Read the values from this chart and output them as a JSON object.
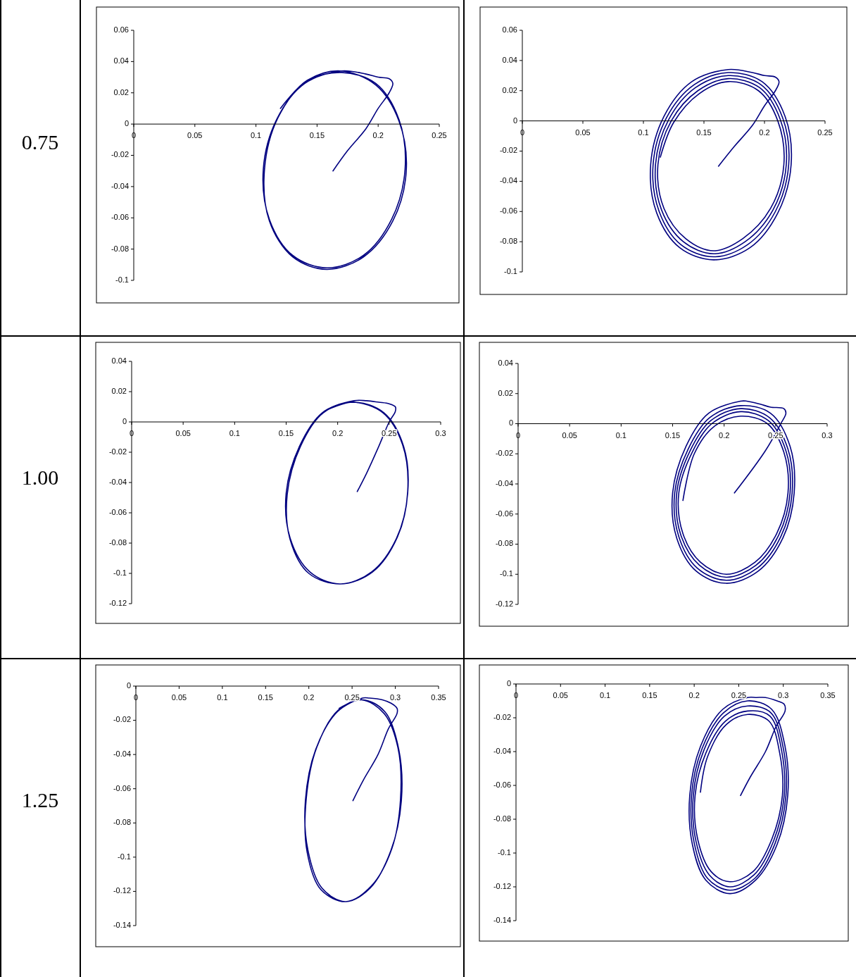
{
  "chart_data": [
    {
      "type": "other",
      "title": "0.75"
    },
    {
      "type": "line",
      "xlim": [
        0,
        0.25
      ],
      "ylim": [
        -0.1,
        0.06
      ],
      "xticks": [
        0,
        0.05,
        0.1,
        0.15,
        0.2,
        0.25
      ],
      "yticks": [
        0.06,
        0.04,
        0.02,
        0,
        -0.02,
        -0.04,
        -0.06,
        -0.08,
        -0.1
      ],
      "series": [
        {
          "color": "#000080",
          "x": [
            0.163,
            0.175,
            0.19,
            0.2,
            0.209,
            0.212,
            0.209,
            0.2,
            0.19,
            0.17,
            0.14,
            0.117,
            0.106,
            0.111,
            0.13,
            0.158,
            0.188,
            0.211,
            0.222,
            0.217,
            0.198,
            0.17,
            0.141,
            0.118,
            0.107,
            0.111,
            0.13,
            0.158,
            0.188,
            0.212,
            0.223,
            0.217,
            0.198,
            0.169,
            0.142,
            0.12
          ],
          "values": [
            -0.03,
            -0.017,
            -0.003,
            0.01,
            0.02,
            0.026,
            0.029,
            0.03,
            0.032,
            0.034,
            0.026,
            0.003,
            -0.029,
            -0.061,
            -0.084,
            -0.092,
            -0.084,
            -0.061,
            -0.029,
            0.003,
            0.026,
            0.033,
            0.027,
            0.004,
            -0.029,
            -0.062,
            -0.085,
            -0.093,
            -0.085,
            -0.062,
            -0.03,
            0.002,
            0.025,
            0.034,
            0.028,
            0.01
          ]
        }
      ]
    },
    {
      "type": "line",
      "xlim": [
        0,
        0.25
      ],
      "ylim": [
        -0.1,
        0.06
      ],
      "xticks": [
        0,
        0.05,
        0.1,
        0.15,
        0.2,
        0.25
      ],
      "yticks": [
        0.06,
        0.04,
        0.02,
        0,
        -0.02,
        -0.04,
        -0.06,
        -0.08,
        -0.1
      ],
      "series": [
        {
          "color": "#000080",
          "x": [
            0.162,
            0.175,
            0.19,
            0.2,
            0.209,
            0.212,
            0.209,
            0.2,
            0.19,
            0.17,
            0.14,
            0.117,
            0.106,
            0.111,
            0.13,
            0.158,
            0.188,
            0.211,
            0.222,
            0.217,
            0.198,
            0.17,
            0.142,
            0.119,
            0.108,
            0.113,
            0.131,
            0.158,
            0.186,
            0.209,
            0.22,
            0.215,
            0.197,
            0.17,
            0.143,
            0.121,
            0.11,
            0.115,
            0.133,
            0.158,
            0.184,
            0.207,
            0.218,
            0.213,
            0.196,
            0.17,
            0.145,
            0.123,
            0.112,
            0.117,
            0.135,
            0.158,
            0.182,
            0.205,
            0.216,
            0.211,
            0.195,
            0.17,
            0.146,
            0.125,
            0.114
          ],
          "values": [
            -0.03,
            -0.017,
            -0.003,
            0.01,
            0.02,
            0.026,
            0.029,
            0.03,
            0.032,
            0.034,
            0.026,
            0.003,
            -0.029,
            -0.061,
            -0.084,
            -0.092,
            -0.084,
            -0.061,
            -0.029,
            0.003,
            0.026,
            0.032,
            0.024,
            0.002,
            -0.029,
            -0.06,
            -0.082,
            -0.09,
            -0.082,
            -0.06,
            -0.029,
            0.002,
            0.024,
            0.03,
            0.022,
            0.001,
            -0.029,
            -0.059,
            -0.08,
            -0.088,
            -0.08,
            -0.059,
            -0.029,
            0.001,
            0.022,
            0.028,
            0.02,
            0,
            -0.029,
            -0.058,
            -0.078,
            -0.086,
            -0.078,
            -0.058,
            -0.029,
            0,
            0.02,
            0.026,
            0.018,
            -0.001,
            -0.024
          ]
        }
      ]
    },
    {
      "type": "other",
      "title": "1.00"
    },
    {
      "type": "line",
      "xlim": [
        0,
        0.3
      ],
      "ylim": [
        -0.12,
        0.04
      ],
      "xticks": [
        0,
        0.05,
        0.1,
        0.15,
        0.2,
        0.25,
        0.3
      ],
      "yticks": [
        0.04,
        0.02,
        0,
        -0.02,
        -0.04,
        -0.06,
        -0.08,
        -0.1,
        -0.12
      ],
      "series": [
        {
          "color": "#000080",
          "x": [
            0.219,
            0.228,
            0.24,
            0.25,
            0.256,
            0.256,
            0.25,
            0.24,
            0.228,
            0.216,
            0.185,
            0.163,
            0.15,
            0.154,
            0.173,
            0.202,
            0.233,
            0.257,
            0.268,
            0.264,
            0.245,
            0.216,
            0.186,
            0.164,
            0.151,
            0.154,
            0.172,
            0.203,
            0.234,
            0.258,
            0.268,
            0.263,
            0.244,
            0.215,
            0.19
          ],
          "values": [
            -0.046,
            -0.034,
            -0.016,
            0,
            0.007,
            0.01,
            0.012,
            0.013,
            0.014,
            0.014,
            0.006,
            -0.016,
            -0.047,
            -0.077,
            -0.099,
            -0.107,
            -0.099,
            -0.077,
            -0.047,
            -0.016,
            0.006,
            0.013,
            0.006,
            -0.016,
            -0.048,
            -0.078,
            -0.1,
            -0.107,
            -0.099,
            -0.076,
            -0.046,
            -0.015,
            0.006,
            0.013,
            0.008
          ]
        }
      ]
    },
    {
      "type": "line",
      "xlim": [
        0,
        0.3
      ],
      "ylim": [
        -0.12,
        0.04
      ],
      "xticks": [
        0,
        0.05,
        0.1,
        0.15,
        0.2,
        0.25,
        0.3
      ],
      "yticks": [
        0.04,
        0.02,
        0,
        -0.02,
        -0.04,
        -0.06,
        -0.08,
        -0.1,
        -0.12
      ],
      "series": [
        {
          "color": "#000080",
          "x": [
            0.21,
            0.24,
            0.255,
            0.26,
            0.258,
            0.245,
            0.235,
            0.222,
            0.216,
            0.185,
            0.163,
            0.15,
            0.154,
            0.173,
            0.202,
            0.233,
            0.257,
            0.268,
            0.264,
            0.245,
            0.216,
            0.186,
            0.165,
            0.152,
            0.156,
            0.174,
            0.202,
            0.232,
            0.255,
            0.266,
            0.262,
            0.244,
            0.216,
            0.187,
            0.167,
            0.154,
            0.158,
            0.176,
            0.202,
            0.231,
            0.253,
            0.264,
            0.26,
            0.243,
            0.216,
            0.188,
            0.169,
            0.156,
            0.16,
            0.177,
            0.202,
            0.23,
            0.251,
            0.262,
            0.258,
            0.242,
            0.216,
            0.19,
            0.171,
            0.16
          ],
          "values": [
            -0.046,
            -0.018,
            0,
            0.007,
            0.01,
            0.011,
            0.013,
            0.015,
            0.015,
            0.007,
            -0.015,
            -0.046,
            -0.076,
            -0.098,
            -0.106,
            -0.098,
            -0.076,
            -0.046,
            -0.015,
            0.007,
            0.012,
            0.004,
            -0.017,
            -0.046,
            -0.075,
            -0.096,
            -0.104,
            -0.096,
            -0.075,
            -0.046,
            -0.017,
            0.004,
            0.01,
            0.002,
            -0.018,
            -0.046,
            -0.074,
            -0.094,
            -0.102,
            -0.094,
            -0.074,
            -0.046,
            -0.018,
            0.002,
            0.008,
            0,
            -0.019,
            -0.046,
            -0.073,
            -0.092,
            -0.1,
            -0.092,
            -0.073,
            -0.046,
            -0.019,
            0,
            0.005,
            -0.002,
            -0.02,
            -0.051
          ]
        }
      ]
    },
    {
      "type": "other",
      "title": "1.25"
    },
    {
      "type": "line",
      "xlim": [
        0,
        0.35
      ],
      "ylim": [
        -0.14,
        0
      ],
      "xticks": [
        0,
        0.05,
        0.1,
        0.15,
        0.2,
        0.25,
        0.3,
        0.35
      ],
      "yticks": [
        0,
        -0.02,
        -0.04,
        -0.06,
        -0.08,
        -0.1,
        -0.12,
        -0.14
      ],
      "series": [
        {
          "color": "#000080",
          "x": [
            0.251,
            0.263,
            0.28,
            0.292,
            0.302,
            0.302,
            0.295,
            0.285,
            0.27,
            0.262,
            0.233,
            0.208,
            0.196,
            0.199,
            0.215,
            0.242,
            0.271,
            0.295,
            0.307,
            0.304,
            0.288,
            0.262,
            0.234,
            0.209,
            0.197,
            0.198,
            0.214,
            0.243,
            0.272,
            0.296,
            0.306,
            0.303,
            0.287,
            0.261,
            0.235
          ],
          "values": [
            -0.067,
            -0.055,
            -0.04,
            -0.025,
            -0.016,
            -0.013,
            -0.01,
            -0.008,
            -0.007,
            -0.007,
            -0.015,
            -0.037,
            -0.067,
            -0.096,
            -0.118,
            -0.126,
            -0.118,
            -0.096,
            -0.067,
            -0.037,
            -0.015,
            -0.008,
            -0.014,
            -0.036,
            -0.066,
            -0.097,
            -0.119,
            -0.126,
            -0.117,
            -0.095,
            -0.066,
            -0.036,
            -0.016,
            -0.008,
            -0.013
          ]
        }
      ]
    },
    {
      "type": "line",
      "xlim": [
        0,
        0.35
      ],
      "ylim": [
        -0.14,
        0
      ],
      "xticks": [
        0,
        0.05,
        0.1,
        0.15,
        0.2,
        0.25,
        0.3,
        0.35
      ],
      "yticks": [
        0,
        -0.02,
        -0.04,
        -0.06,
        -0.08,
        -0.1,
        -0.12,
        -0.14
      ],
      "series": [
        {
          "color": "#000080",
          "x": [
            0.252,
            0.263,
            0.28,
            0.292,
            0.302,
            0.301,
            0.293,
            0.28,
            0.27,
            0.26,
            0.232,
            0.207,
            0.195,
            0.198,
            0.213,
            0.24,
            0.269,
            0.293,
            0.305,
            0.302,
            0.287,
            0.26,
            0.233,
            0.209,
            0.197,
            0.2,
            0.215,
            0.24,
            0.268,
            0.291,
            0.303,
            0.3,
            0.286,
            0.26,
            0.234,
            0.211,
            0.199,
            0.202,
            0.217,
            0.24,
            0.267,
            0.289,
            0.301,
            0.298,
            0.285,
            0.26,
            0.235,
            0.213,
            0.201,
            0.204,
            0.219,
            0.24,
            0.266,
            0.287,
            0.299,
            0.296,
            0.284,
            0.26,
            0.236,
            0.215,
            0.207
          ],
          "values": [
            -0.066,
            -0.055,
            -0.04,
            -0.025,
            -0.016,
            -0.012,
            -0.01,
            -0.008,
            -0.008,
            -0.008,
            -0.015,
            -0.037,
            -0.066,
            -0.095,
            -0.116,
            -0.124,
            -0.116,
            -0.095,
            -0.066,
            -0.037,
            -0.015,
            -0.01,
            -0.017,
            -0.038,
            -0.066,
            -0.094,
            -0.115,
            -0.122,
            -0.115,
            -0.094,
            -0.066,
            -0.038,
            -0.017,
            -0.013,
            -0.019,
            -0.039,
            -0.066,
            -0.093,
            -0.113,
            -0.12,
            -0.113,
            -0.093,
            -0.066,
            -0.039,
            -0.019,
            -0.016,
            -0.022,
            -0.041,
            -0.066,
            -0.092,
            -0.111,
            -0.117,
            -0.111,
            -0.092,
            -0.066,
            -0.041,
            -0.022,
            -0.018,
            -0.024,
            -0.043,
            -0.064
          ]
        }
      ]
    }
  ]
}
